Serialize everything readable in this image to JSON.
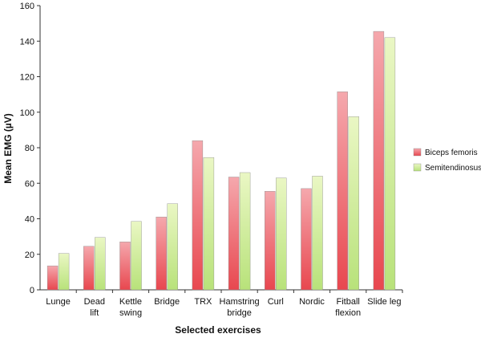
{
  "chart_data": {
    "type": "bar",
    "title": "",
    "xlabel": "Selected  exercises",
    "ylabel": "Mean EMG (µV)",
    "ylim": [
      0,
      160
    ],
    "yticks": [
      0,
      20,
      40,
      60,
      80,
      100,
      120,
      140,
      160
    ],
    "grid": false,
    "legend_position": "right",
    "categories": [
      [
        "Lunge"
      ],
      [
        "Dead",
        "lift"
      ],
      [
        "Kettle",
        "swing"
      ],
      [
        "Bridge"
      ],
      [
        "TRX"
      ],
      [
        "Hamstring",
        "bridge"
      ],
      [
        "Curl"
      ],
      [
        "Nordic"
      ],
      [
        "Fitball",
        "flexion"
      ],
      [
        "Slide leg"
      ]
    ],
    "series": [
      {
        "name": "Biceps femoris",
        "color": "#e8474f",
        "color_light": "#f5a8ad",
        "values": [
          13.5,
          24.5,
          27,
          41,
          84,
          63.5,
          55.5,
          57,
          111.5,
          145.5
        ]
      },
      {
        "name": "Semitendinosus",
        "color": "#b8e27a",
        "color_light": "#eaf7c4",
        "values": [
          20.5,
          29.5,
          38.5,
          48.5,
          74.5,
          66,
          63,
          64,
          97.5,
          142
        ]
      }
    ]
  }
}
